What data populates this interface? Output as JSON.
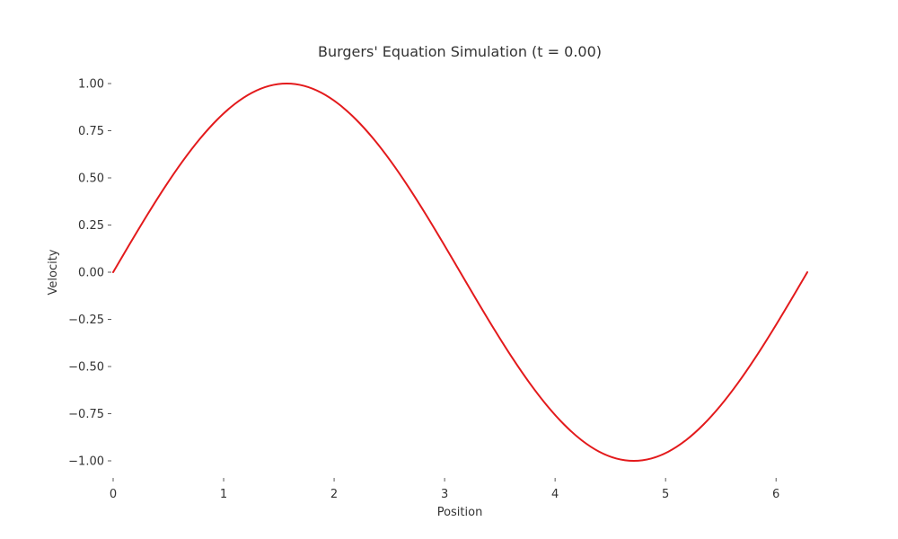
{
  "chart_data": {
    "type": "line",
    "title": "Burgers' Equation Simulation (t = 0.00)",
    "xlabel": "Position",
    "ylabel": "Velocity",
    "xlim": [
      0,
      6.283
    ],
    "ylim": [
      -1.1,
      1.1
    ],
    "x_ticks": [
      0,
      1,
      2,
      3,
      4,
      5,
      6
    ],
    "x_tick_labels": [
      "0",
      "1",
      "2",
      "3",
      "4",
      "5",
      "6"
    ],
    "y_ticks": [
      1.0,
      0.75,
      0.5,
      0.25,
      0.0,
      -0.25,
      -0.5,
      -0.75,
      -1.0
    ],
    "y_tick_labels": [
      "1.00",
      "0.75",
      "0.50",
      "0.25",
      "0.00",
      "−0.25",
      "−0.50",
      "−0.75",
      "−1.00"
    ],
    "grid": false,
    "series": [
      {
        "color": "#e31a1c",
        "x": [
          0,
          0.1571,
          0.3142,
          0.4712,
          0.6283,
          0.7854,
          0.9425,
          1.0996,
          1.2566,
          1.4137,
          1.5708,
          1.7279,
          1.885,
          2.042,
          2.1991,
          2.3562,
          2.5133,
          2.6704,
          2.8274,
          2.9845,
          3.1416,
          3.2987,
          3.4558,
          3.6128,
          3.7699,
          3.927,
          4.0841,
          4.2412,
          4.3982,
          4.5553,
          4.7124,
          4.8695,
          5.0265,
          5.1836,
          5.3407,
          5.4978,
          5.6549,
          5.8119,
          5.969,
          6.1261,
          6.2832
        ],
        "y": [
          0.0,
          0.1564,
          0.309,
          0.454,
          0.5878,
          0.7071,
          0.809,
          0.891,
          0.9511,
          0.9877,
          1.0,
          0.9877,
          0.9511,
          0.891,
          0.809,
          0.7071,
          0.5878,
          0.454,
          0.309,
          0.1564,
          0.0,
          -0.1564,
          -0.309,
          -0.454,
          -0.5878,
          -0.7071,
          -0.809,
          -0.891,
          -0.9511,
          -0.9877,
          -1.0,
          -0.9877,
          -0.9511,
          -0.891,
          -0.809,
          -0.7071,
          -0.5878,
          -0.454,
          -0.309,
          -0.1564,
          0.0
        ]
      }
    ]
  }
}
